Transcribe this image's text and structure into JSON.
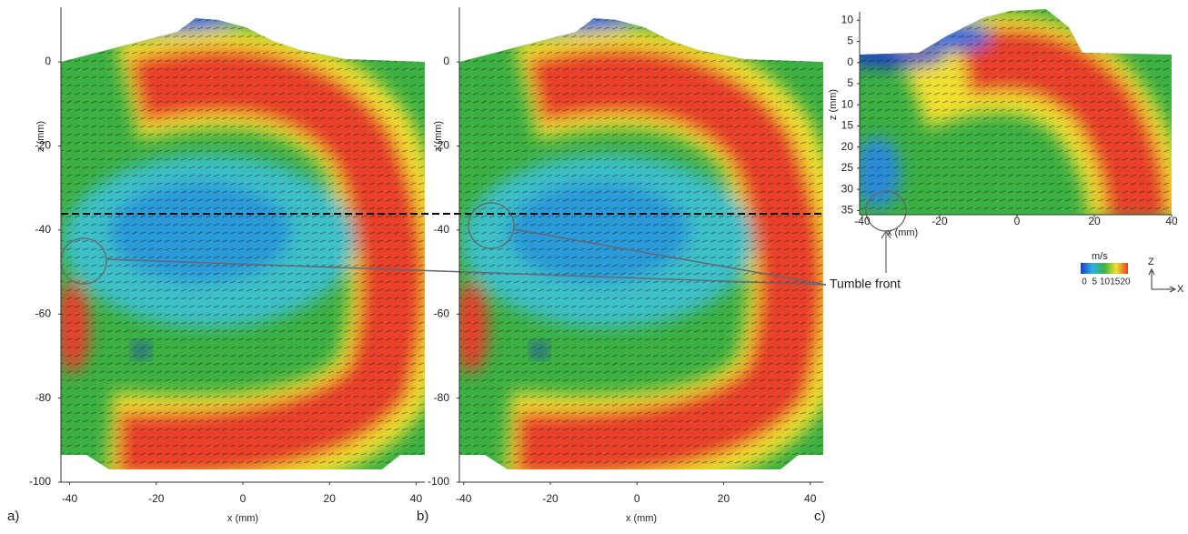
{
  "chart_data": [
    {
      "type": "field",
      "panel_label": "a)",
      "xlabel": "x (mm)",
      "ylabel": "z (mm)",
      "xlim": [
        -42,
        42
      ],
      "ylim": [
        -100,
        13
      ],
      "xticks": [
        -40,
        -20,
        0,
        20,
        40
      ],
      "yticks": [
        0,
        -20,
        -40,
        -60,
        -80,
        -100
      ]
    },
    {
      "type": "field",
      "panel_label": "b)",
      "xlabel": "x (mm)",
      "ylabel": "z (mm)",
      "xlim": [
        -41,
        43
      ],
      "ylim": [
        -100,
        13
      ],
      "xticks": [
        -40,
        -20,
        0,
        20,
        40
      ],
      "yticks": [
        0,
        -20,
        -40,
        -60,
        -80,
        -100
      ]
    },
    {
      "type": "field",
      "panel_label": "c)",
      "xlabel": "x (mm)",
      "ylabel": "z (mm)",
      "xlim": [
        -40.7,
        40
      ],
      "ylim": [
        -36,
        12
      ],
      "xticks": [
        -40,
        -20,
        0,
        20,
        40
      ],
      "yticks": [
        10,
        5,
        0,
        {
          "value": -5,
          "label": "5"
        },
        {
          "value": -10,
          "label": "10"
        },
        {
          "value": -15,
          "label": "15"
        },
        {
          "value": -20,
          "label": "20"
        },
        {
          "value": -25,
          "label": "25"
        },
        {
          "value": -30,
          "label": "30"
        },
        {
          "value": -35,
          "label": "35"
        }
      ]
    }
  ],
  "colorbar": {
    "label": "m/s",
    "lim": [
      0,
      20
    ],
    "ticks": [
      0,
      5,
      10,
      15,
      20
    ]
  },
  "annotation": "Tumble front",
  "axes_glyph": {
    "up": "Z",
    "right": "X"
  }
}
